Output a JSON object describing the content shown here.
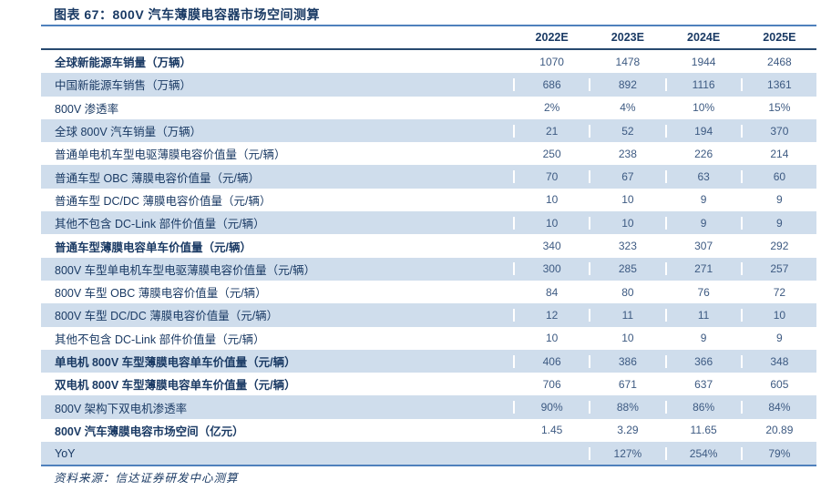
{
  "title": "图表 67：800V 汽车薄膜电容器市场空间测算",
  "source": "资料来源：信达证券研发中心测算",
  "colors": {
    "text-dark": "#1A3A64",
    "text-value": "#3D5A82",
    "row-alt": "#CFDDEC",
    "border-outer": "#4F81BD",
    "border-header": "#27496F"
  },
  "table": {
    "columns": [
      "",
      "2022E",
      "2023E",
      "2024E",
      "2025E"
    ],
    "rows": [
      {
        "label": "全球新能源车销量（万辆）",
        "bold": true,
        "values": [
          "1070",
          "1478",
          "1944",
          "2468"
        ]
      },
      {
        "label": "中国新能源车销售（万辆）",
        "bold": false,
        "values": [
          "686",
          "892",
          "1116",
          "1361"
        ]
      },
      {
        "label": "800V 渗透率",
        "bold": false,
        "values": [
          "2%",
          "4%",
          "10%",
          "15%"
        ]
      },
      {
        "label": "全球 800V 汽车销量（万辆）",
        "bold": false,
        "values": [
          "21",
          "52",
          "194",
          "370"
        ]
      },
      {
        "label": "普通单电机车型电驱薄膜电容价值量（元/辆）",
        "bold": false,
        "values": [
          "250",
          "238",
          "226",
          "214"
        ]
      },
      {
        "label": "普通车型 OBC 薄膜电容价值量（元/辆）",
        "bold": false,
        "values": [
          "70",
          "67",
          "63",
          "60"
        ]
      },
      {
        "label": "普通车型 DC/DC 薄膜电容价值量（元/辆）",
        "bold": false,
        "values": [
          "10",
          "10",
          "9",
          "9"
        ]
      },
      {
        "label": "其他不包含 DC-Link 部件价值量（元/辆）",
        "bold": false,
        "values": [
          "10",
          "10",
          "9",
          "9"
        ]
      },
      {
        "label": "普通车型薄膜电容单车价值量（元/辆）",
        "bold": true,
        "values": [
          "340",
          "323",
          "307",
          "292"
        ]
      },
      {
        "label": "800V 车型单电机车型电驱薄膜电容价值量（元/辆）",
        "bold": false,
        "values": [
          "300",
          "285",
          "271",
          "257"
        ]
      },
      {
        "label": "800V 车型 OBC 薄膜电容价值量（元/辆）",
        "bold": false,
        "values": [
          "84",
          "80",
          "76",
          "72"
        ]
      },
      {
        "label": "800V 车型 DC/DC 薄膜电容价值量（元/辆）",
        "bold": false,
        "values": [
          "12",
          "11",
          "11",
          "10"
        ]
      },
      {
        "label": "其他不包含 DC-Link 部件价值量（元/辆）",
        "bold": false,
        "values": [
          "10",
          "10",
          "9",
          "9"
        ]
      },
      {
        "label": "单电机 800V 车型薄膜电容单车价值量（元/辆）",
        "bold": true,
        "values": [
          "406",
          "386",
          "366",
          "348"
        ]
      },
      {
        "label": "双电机 800V 车型薄膜电容单车价值量（元/辆）",
        "bold": true,
        "values": [
          "706",
          "671",
          "637",
          "605"
        ]
      },
      {
        "label": "800V 架构下双电机渗透率",
        "bold": false,
        "values": [
          "90%",
          "88%",
          "86%",
          "84%"
        ]
      },
      {
        "label": "800V 汽车薄膜电容市场空间（亿元）",
        "bold": true,
        "values": [
          "1.45",
          "3.29",
          "11.65",
          "20.89"
        ]
      },
      {
        "label": "YoY",
        "bold": false,
        "values": [
          "",
          "127%",
          "254%",
          "79%"
        ]
      }
    ]
  }
}
